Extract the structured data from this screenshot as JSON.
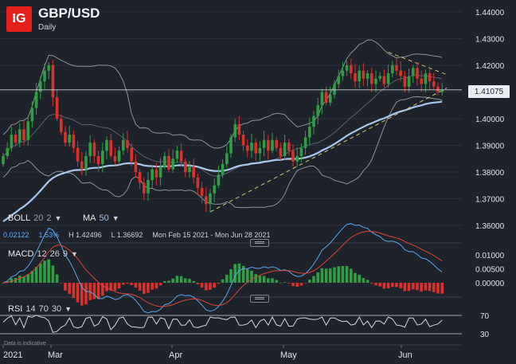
{
  "header": {
    "logo": "IG",
    "symbol": "GBP/USD",
    "timeframe": "Daily"
  },
  "price_tag": "1.41075",
  "indicators": {
    "boll": {
      "name": "BOLL",
      "p1": "20",
      "p2": "2"
    },
    "ma": {
      "name": "MA",
      "p1": "50"
    },
    "macd": {
      "name": "MACD",
      "p1": "12",
      "p2": "26",
      "p3": "9"
    },
    "rsi": {
      "name": "RSI",
      "p1": "14",
      "p2": "70",
      "p3": "30"
    }
  },
  "stats": {
    "change": "0.02122",
    "change_pct": "1.53%",
    "high": "H 1.42496",
    "low": "L 1.36692",
    "range": "Mon Feb 15 2021 - Mon Jun 28 2021"
  },
  "note": "Data is indicative",
  "x_labels": [
    "2021",
    "Mar",
    "Apr",
    "May",
    "Jun"
  ],
  "y_labels": [
    "1.44000",
    "1.43000",
    "1.42000",
    "1.41000",
    "1.40000",
    "1.39000",
    "1.38000",
    "1.37000",
    "1.36000"
  ],
  "macd_labels": [
    "0.01000",
    "0.00500",
    "0.00000"
  ],
  "rsi_labels": [
    "70",
    "30"
  ],
  "colors": {
    "up": "#2ea043",
    "down": "#d9322b",
    "ma": "#a7c8ec",
    "band": "#8f949c",
    "logo": "#e4221b"
  },
  "chart_data": {
    "type": "candlestick",
    "ylim": [
      1.355,
      1.445
    ],
    "bollinger_period": 20,
    "bollinger_std": 2,
    "ma_period": 50,
    "ma_start": 1.3605,
    "closes": [
      1.386,
      1.389,
      1.394,
      1.391,
      1.396,
      1.392,
      1.399,
      1.404,
      1.41,
      1.414,
      1.418,
      1.42,
      1.408,
      1.4,
      1.395,
      1.391,
      1.394,
      1.389,
      1.384,
      1.381,
      1.386,
      1.391,
      1.386,
      1.383,
      1.388,
      1.392,
      1.386,
      1.384,
      1.388,
      1.392,
      1.389,
      1.384,
      1.38,
      1.376,
      1.372,
      1.377,
      1.381,
      1.378,
      1.382,
      1.386,
      1.381,
      1.385,
      1.388,
      1.384,
      1.38,
      1.382,
      1.378,
      1.374,
      1.371,
      1.368,
      1.372,
      1.375,
      1.379,
      1.383,
      1.387,
      1.393,
      1.398,
      1.394,
      1.39,
      1.388,
      1.391,
      1.387,
      1.389,
      1.392,
      1.388,
      1.392,
      1.389,
      1.386,
      1.391,
      1.388,
      1.384,
      1.386,
      1.389,
      1.393,
      1.397,
      1.401,
      1.405,
      1.41,
      1.406,
      1.409,
      1.413,
      1.416,
      1.418,
      1.42,
      1.417,
      1.414,
      1.418,
      1.415,
      1.417,
      1.413,
      1.415,
      1.416,
      1.413,
      1.417,
      1.42,
      1.418,
      1.416,
      1.412,
      1.416,
      1.419,
      1.415,
      1.413,
      1.417,
      1.414,
      1.412,
      1.41,
      1.4108
    ],
    "macd_ylim": [
      -0.0025,
      0.0115
    ],
    "rsi_levels": [
      70,
      30
    ]
  }
}
